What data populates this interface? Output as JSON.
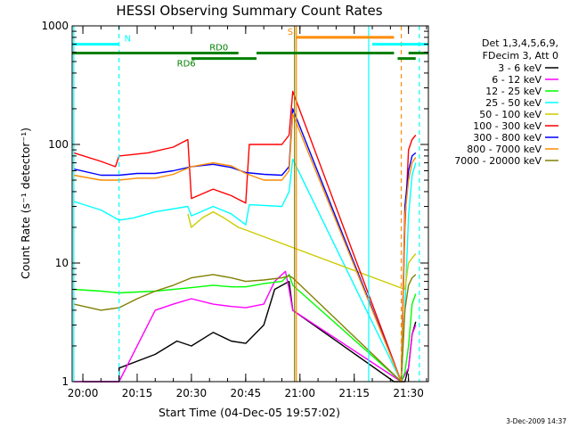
{
  "chart_data": {
    "type": "line",
    "title": "HESSI Observing Summary Count Rates",
    "xlabel": "Start Time (04-Dec-05 19:57:02)",
    "ylabel": "Count Rate (s⁻¹ detector⁻¹)",
    "y_scale": "log",
    "xlim": [
      "19:57:02",
      "21:35:30"
    ],
    "ylim": [
      1,
      1000
    ],
    "x_tick_labels": [
      "20:00",
      "20:15",
      "20:30",
      "20:45",
      "21:00",
      "21:15",
      "21:30"
    ],
    "y_tick_labels": [
      "1",
      "10",
      "100",
      "1000"
    ],
    "legend_header": [
      "Det 1,3,4,5,6,9,",
      "FDecim 3, Att 0"
    ],
    "legend_position": "right",
    "series": [
      {
        "name": "3 - 6 keV",
        "color": "#000000",
        "x": [
          "20:00",
          "20:10",
          "20:10",
          "20:20",
          "20:26",
          "20:30",
          "20:36",
          "20:41",
          "20:45",
          "20:50",
          "20:53",
          "20:57",
          "20:58",
          "21:26",
          "21:29",
          "21:30",
          "21:31",
          "21:32"
        ],
        "y": [
          1.0,
          1.0,
          1.3,
          1.7,
          2.2,
          2.0,
          2.6,
          2.2,
          2.1,
          3.0,
          6.0,
          7.0,
          4.0,
          1.0,
          1.0,
          1.3,
          2.5,
          3.2
        ]
      },
      {
        "name": "6 - 12 keV",
        "color": "#ff00ff",
        "x": [
          "19:57:30",
          "20:05",
          "20:10",
          "20:20",
          "20:25",
          "20:30",
          "20:36",
          "20:41",
          "20:45",
          "20:50",
          "20:53",
          "20:56",
          "20:57",
          "20:58",
          "21:28",
          "21:30",
          "21:31",
          "21:32"
        ],
        "y": [
          1.0,
          1.0,
          1.0,
          4.0,
          4.5,
          5.0,
          4.5,
          4.3,
          4.2,
          4.5,
          7.0,
          8.5,
          6.0,
          4.0,
          1.0,
          1.3,
          2.5,
          3.0
        ]
      },
      {
        "name": "12 - 25 keV",
        "color": "#00ff00",
        "x": [
          "19:57:30",
          "20:05",
          "20:10",
          "20:20",
          "20:30",
          "20:36",
          "20:41",
          "20:45",
          "20:50",
          "20:55",
          "20:57",
          "20:58",
          "21:28",
          "21:29",
          "21:30",
          "21:31",
          "21:32"
        ],
        "y": [
          6.0,
          5.8,
          5.6,
          5.8,
          6.2,
          6.5,
          6.3,
          6.3,
          6.7,
          7.0,
          8.0,
          6.5,
          1.0,
          1.2,
          2.0,
          4.5,
          5.5
        ]
      },
      {
        "name": "25 - 50 keV",
        "color": "#00ffff",
        "x": [
          "19:57:30",
          "20:05",
          "20:10",
          "20:14",
          "20:20",
          "20:29",
          "20:30",
          "20:36",
          "20:41",
          "20:45",
          "20:46",
          "20:55",
          "20:57",
          "20:58",
          "21:28",
          "21:29",
          "21:30",
          "21:31",
          "21:32"
        ],
        "y": [
          33,
          28,
          23,
          24,
          27,
          30,
          25,
          30,
          26,
          21,
          31,
          30,
          40,
          75,
          1.0,
          4.0,
          25,
          55,
          70
        ]
      },
      {
        "name": "50 - 100 keV",
        "color": "#cccc00",
        "x": [
          "20:29",
          "20:30",
          "20:33",
          "20:36",
          "20:39",
          "20:43",
          "20:45",
          "21:29",
          "21:30",
          "21:31",
          "21:32"
        ],
        "y": [
          26,
          20,
          24,
          27,
          24,
          20,
          19,
          6.0,
          10,
          11,
          12
        ]
      },
      {
        "name": "100 - 300 keV",
        "color": "#ff0000",
        "x": [
          "19:57:30",
          "20:05",
          "20:09",
          "20:10",
          "20:18",
          "20:25",
          "20:29",
          "20:30",
          "20:36",
          "20:41",
          "20:45",
          "20:46",
          "20:55",
          "20:57",
          "20:58",
          "21:28",
          "21:29",
          "21:30",
          "21:31",
          "21:32"
        ],
        "y": [
          85,
          72,
          65,
          80,
          85,
          95,
          110,
          35,
          42,
          37,
          32,
          100,
          100,
          120,
          280,
          1.0,
          20,
          90,
          110,
          120
        ]
      },
      {
        "name": "300 - 800 keV",
        "color": "#0000ff",
        "x": [
          "19:57:30",
          "20:05",
          "20:10",
          "20:15",
          "20:20",
          "20:25",
          "20:30",
          "20:36",
          "20:41",
          "20:45",
          "20:50",
          "20:55",
          "20:57",
          "20:58",
          "21:28",
          "21:29",
          "21:30",
          "21:31",
          "21:32"
        ],
        "y": [
          62,
          55,
          55,
          57,
          57,
          60,
          65,
          68,
          64,
          58,
          56,
          55,
          65,
          200,
          1.0,
          30,
          60,
          80,
          85
        ]
      },
      {
        "name": "800 - 7000 keV",
        "color": "#ff8c00",
        "x": [
          "19:57:30",
          "20:05",
          "20:10",
          "20:15",
          "20:20",
          "20:25",
          "20:30",
          "20:36",
          "20:41",
          "20:45",
          "20:50",
          "20:55",
          "20:57",
          "20:58",
          "21:28",
          "21:29",
          "21:30",
          "21:31",
          "21:32"
        ],
        "y": [
          55,
          50,
          50,
          52,
          52,
          56,
          65,
          70,
          66,
          57,
          50,
          50,
          60,
          180,
          1.0,
          25,
          50,
          70,
          78
        ]
      },
      {
        "name": "7000 - 20000 keV",
        "color": "#808000",
        "x": [
          "19:57:30",
          "20:05",
          "20:10",
          "20:15",
          "20:20",
          "20:25",
          "20:30",
          "20:36",
          "20:41",
          "20:45",
          "20:50",
          "20:55",
          "20:57",
          "20:58",
          "21:28",
          "21:29",
          "21:30",
          "21:31",
          "21:32"
        ],
        "y": [
          4.5,
          4.0,
          4.2,
          5.0,
          5.8,
          6.5,
          7.5,
          8.0,
          7.5,
          7.0,
          7.2,
          7.5,
          7.8,
          7.5,
          1.0,
          4.0,
          6.5,
          7.5,
          8.0
        ]
      }
    ],
    "annotations": {
      "N": {
        "label": "N",
        "color": "#00ffff",
        "segments": [
          [
            "19:57:02",
            "20:10"
          ],
          [
            "21:20",
            "21:35:30"
          ]
        ],
        "level": 700
      },
      "S": {
        "label": "S",
        "color": "#ff8c00",
        "segments": [
          [
            "20:59",
            "21:26"
          ]
        ],
        "level": 800
      },
      "RD0": {
        "label": "RD0",
        "color": "#008000",
        "segments": [
          [
            "19:57:02",
            "20:43"
          ],
          [
            "20:48",
            "21:26"
          ],
          [
            "21:30",
            "21:35:30"
          ]
        ],
        "level": 590
      },
      "RD6": {
        "label": "RD6",
        "color": "#008000",
        "segments": [
          [
            "20:30",
            "20:48"
          ],
          [
            "21:27",
            "21:32"
          ]
        ],
        "level": 530
      },
      "vertical_lines": [
        {
          "t": "20:10",
          "color": "#00ffff",
          "style": "dashed"
        },
        {
          "t": "20:59",
          "color": "#ff8c00",
          "style": "solid"
        },
        {
          "t": "20:58:30",
          "color": "#808000",
          "style": "solid"
        },
        {
          "t": "21:19",
          "color": "#00ffff",
          "style": "solid"
        },
        {
          "t": "21:28",
          "color": "#ff8c00",
          "style": "dashed"
        },
        {
          "t": "21:33",
          "color": "#00ffff",
          "style": "dashed"
        },
        {
          "t": "19:57:30",
          "color": "#00ffff",
          "style": "solid"
        }
      ]
    },
    "timestamp": "3-Dec-2009 14:37"
  }
}
